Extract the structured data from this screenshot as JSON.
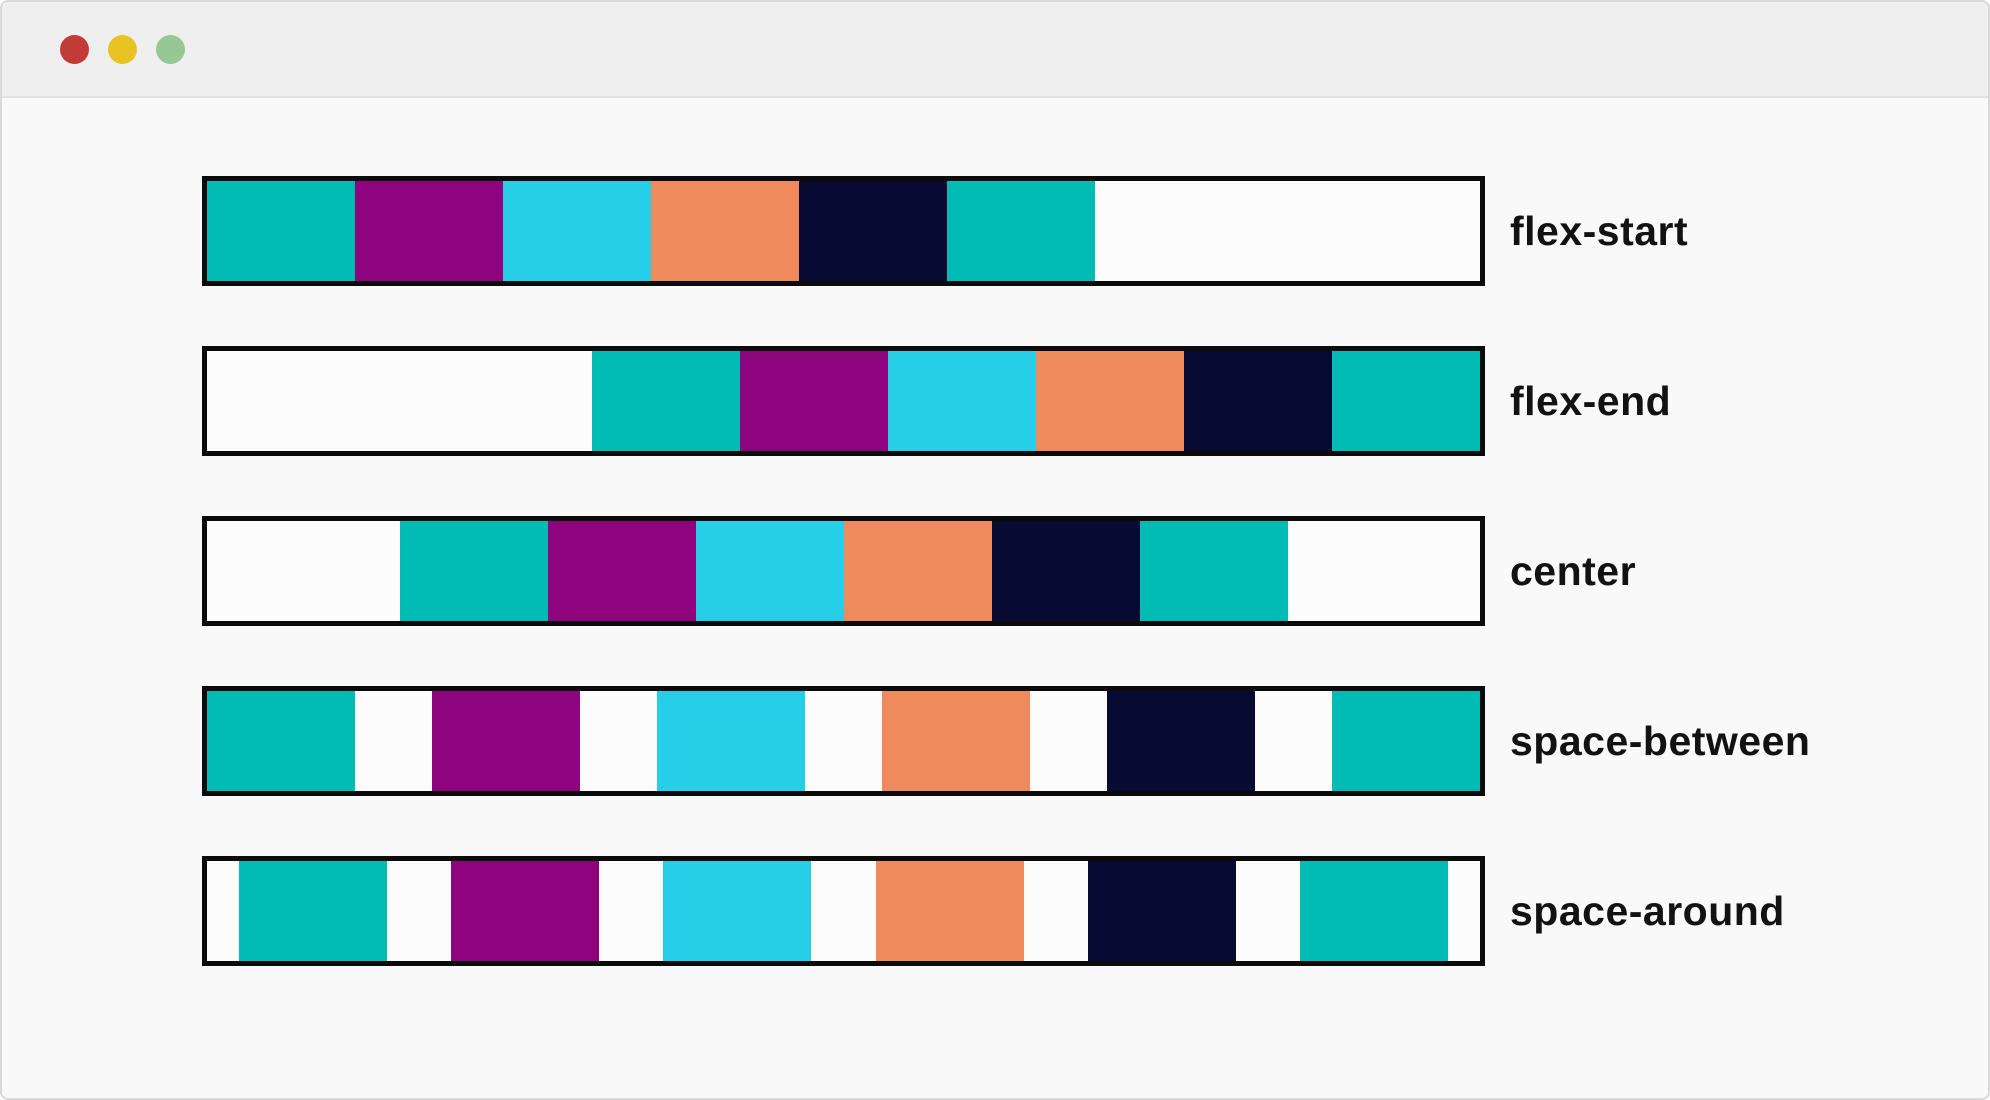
{
  "window": {
    "traffic_lights": [
      {
        "name": "close",
        "color": "#c23b36"
      },
      {
        "name": "minimize",
        "color": "#e9c322"
      },
      {
        "name": "zoom",
        "color": "#97c795"
      }
    ]
  },
  "demo": {
    "item_colors": [
      "#00bcb4",
      "#8e037e",
      "#26cee8",
      "#ee8a5c",
      "#070a33",
      "#00bcb4"
    ],
    "items_per_row": 6,
    "rows": [
      {
        "label": "flex-start",
        "justify": "flex-start"
      },
      {
        "label": "flex-end",
        "justify": "flex-end"
      },
      {
        "label": "center",
        "justify": "center"
      },
      {
        "label": "space-between",
        "justify": "space-between"
      },
      {
        "label": "space-around",
        "justify": "space-around"
      }
    ]
  },
  "colors": {
    "page_bg": "#f9f9f9",
    "titlebar_bg": "#efefef",
    "titlebar_border": "#e2e2e2",
    "frame_border": "#d9d9d9",
    "container_border": "#0b0b0b",
    "container_bg": "#fcfcfc",
    "label_color": "#121212"
  }
}
